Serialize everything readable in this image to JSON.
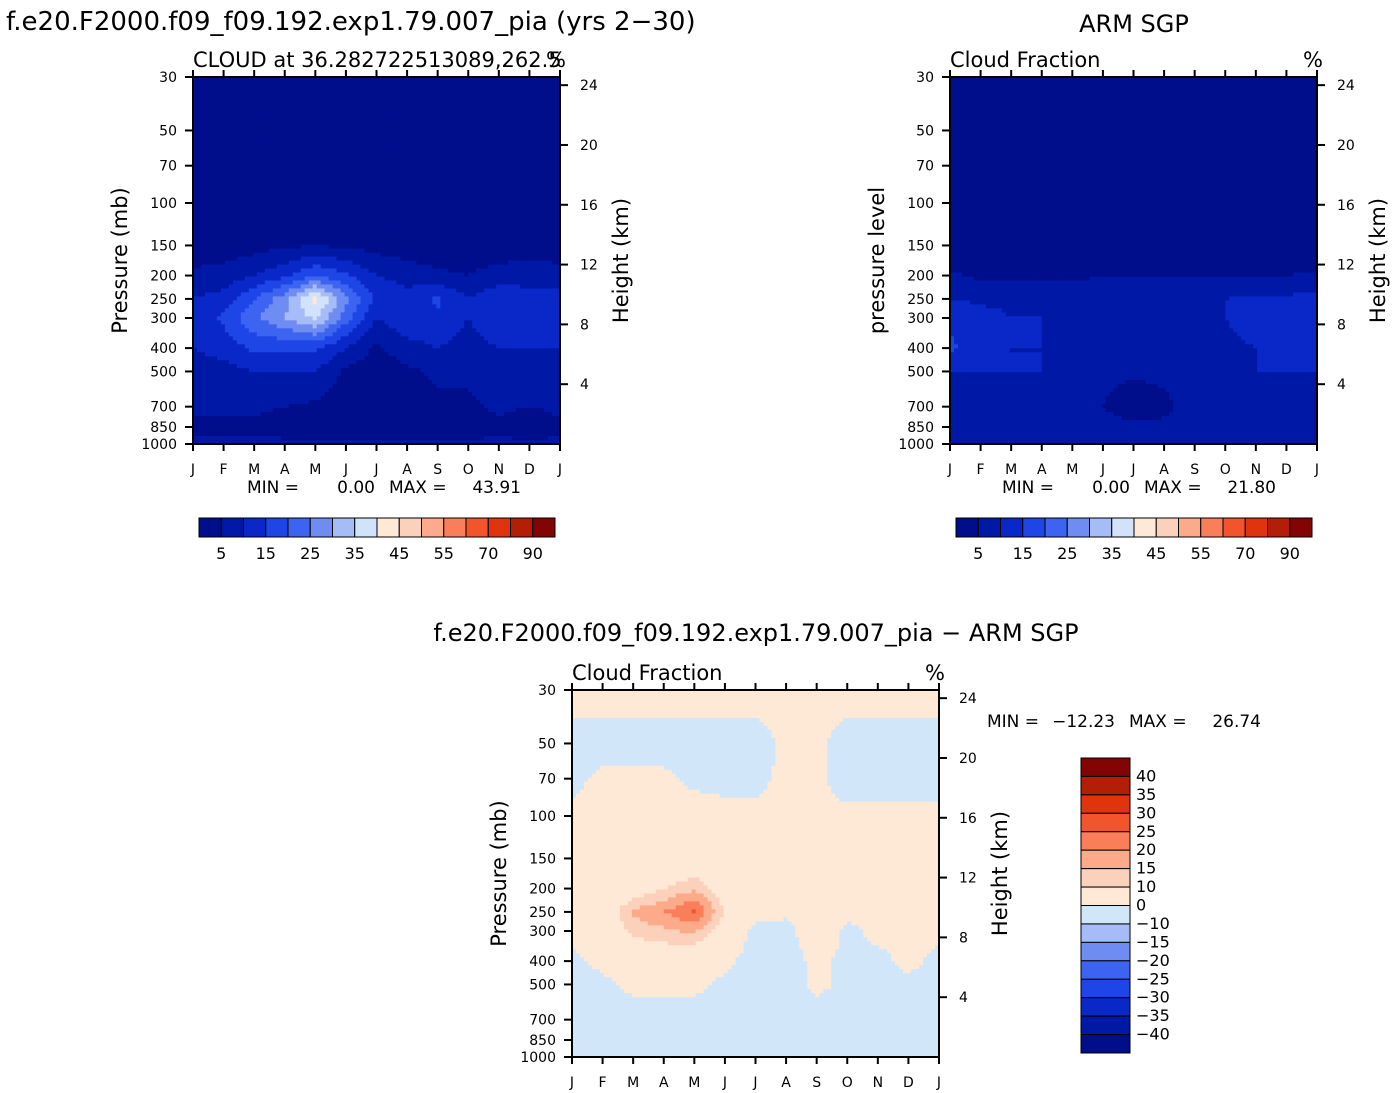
{
  "main_title": "f.e20.F2000.f09_f09.192.exp1.79.007_pia (yrs 2−30)",
  "obs_title": "ARM SGP",
  "diff_title": "f.e20.F2000.f09_f09.192.exp1.79.007_pia − ARM SGP",
  "colors": {
    "levels_abs": [
      "#000e8c",
      "#0018a6",
      "#0a28c8",
      "#1e46e6",
      "#3c64f0",
      "#6e8cf2",
      "#a6bcf6",
      "#d2e2fa",
      "#fde9d6",
      "#fcd1bc",
      "#fcaa8a",
      "#fa7e5a",
      "#f2542c",
      "#e0340e",
      "#b21e06",
      "#820404"
    ],
    "levels_diff": [
      "#000e8c",
      "#0018a6",
      "#0a28c8",
      "#1e46e6",
      "#3c64f0",
      "#6e8cf2",
      "#a6bcf6",
      "#d2e6fa",
      "#fde9d6",
      "#fcd1bc",
      "#fcaa8a",
      "#fa7e5a",
      "#f2542c",
      "#e0340e",
      "#b21e06",
      "#820404"
    ]
  },
  "chart_data": [
    {
      "type": "heatmap",
      "id": "model",
      "panel_title": "CLOUD at 36.282722513089,262.5",
      "units": "%",
      "ylabel": "Pressure (mb)",
      "y2label": "Height (km)",
      "categories": [
        "J",
        "F",
        "M",
        "A",
        "M",
        "J",
        "J",
        "A",
        "S",
        "O",
        "N",
        "D",
        "J"
      ],
      "pressure_ticks": [
        "30",
        "50",
        "70",
        "100",
        "150",
        "200",
        "250",
        "300",
        "400",
        "500",
        "700",
        "850",
        "1000"
      ],
      "height_ticks": [
        "24",
        "20",
        "16",
        "12",
        "8",
        "4"
      ],
      "min_label": "MIN =",
      "min_value": "0.00",
      "max_label": "MAX =",
      "max_value": "43.91",
      "colorbar_labels": [
        "5",
        "15",
        "25",
        "35",
        "45",
        "55",
        "70",
        "90"
      ],
      "levels": [
        0,
        5,
        10,
        15,
        20,
        25,
        30,
        35,
        40,
        45,
        50,
        55,
        60,
        70,
        80,
        90
      ],
      "grid_pressure": [
        30,
        150,
        200,
        250,
        300,
        400,
        500,
        700,
        850,
        1000
      ],
      "z": [
        [
          0,
          0,
          0,
          0,
          0,
          0,
          0,
          0,
          0,
          0,
          0,
          0,
          0
        ],
        [
          2,
          2,
          3,
          4,
          5,
          4,
          3,
          2,
          2,
          2,
          2,
          2,
          2
        ],
        [
          6,
          7,
          10,
          14,
          20,
          16,
          10,
          8,
          6,
          5,
          7,
          8,
          7
        ],
        [
          10,
          12,
          20,
          28,
          42,
          26,
          14,
          12,
          16,
          10,
          14,
          12,
          12
        ],
        [
          12,
          16,
          24,
          30,
          36,
          22,
          10,
          14,
          14,
          10,
          14,
          12,
          14
        ],
        [
          10,
          12,
          16,
          16,
          16,
          10,
          4,
          8,
          10,
          8,
          10,
          10,
          10
        ],
        [
          8,
          8,
          10,
          10,
          10,
          4,
          2,
          4,
          6,
          6,
          8,
          8,
          8
        ],
        [
          6,
          6,
          6,
          5,
          4,
          2,
          1,
          2,
          4,
          4,
          6,
          5,
          6
        ],
        [
          4,
          4,
          4,
          3,
          2,
          1,
          1,
          1,
          2,
          2,
          4,
          2,
          4
        ],
        [
          6,
          6,
          6,
          6,
          6,
          6,
          6,
          6,
          6,
          6,
          6,
          6,
          6
        ]
      ]
    },
    {
      "type": "heatmap",
      "id": "obs",
      "panel_title": "Cloud Fraction",
      "units": "%",
      "ylabel": "pressure level",
      "y2label": "Height (km)",
      "categories": [
        "J",
        "F",
        "M",
        "A",
        "M",
        "J",
        "J",
        "A",
        "S",
        "O",
        "N",
        "D",
        "J"
      ],
      "pressure_ticks": [
        "30",
        "50",
        "70",
        "100",
        "150",
        "200",
        "250",
        "300",
        "400",
        "500",
        "700",
        "850",
        "1000"
      ],
      "height_ticks": [
        "24",
        "20",
        "16",
        "12",
        "8",
        "4"
      ],
      "min_label": "MIN =",
      "min_value": "0.00",
      "max_label": "MAX =",
      "max_value": "21.80",
      "colorbar_labels": [
        "5",
        "15",
        "25",
        "35",
        "45",
        "55",
        "70",
        "90"
      ],
      "levels": [
        0,
        5,
        10,
        15,
        20,
        25,
        30,
        35,
        40,
        45,
        50,
        55,
        60,
        70,
        80,
        90
      ],
      "grid_pressure": [
        30,
        150,
        200,
        250,
        300,
        400,
        500,
        700,
        850,
        1000
      ],
      "z": [
        [
          0,
          0,
          0,
          0,
          0,
          0,
          0,
          0,
          0,
          0,
          0,
          0,
          0
        ],
        [
          0,
          0,
          0,
          1,
          1,
          2,
          2,
          2,
          1,
          1,
          1,
          0,
          0
        ],
        [
          6,
          4,
          4,
          4,
          4,
          5,
          5,
          5,
          5,
          5,
          5,
          5,
          6
        ],
        [
          10,
          9,
          9,
          9,
          8,
          8,
          7,
          8,
          10,
          10,
          11,
          11,
          12
        ],
        [
          14,
          12,
          10,
          10,
          9,
          8,
          6,
          6,
          8,
          10,
          12,
          12,
          14
        ],
        [
          16,
          12,
          10,
          10,
          9,
          7,
          6,
          6,
          8,
          9,
          10,
          12,
          12
        ],
        [
          10,
          10,
          10,
          10,
          9,
          6,
          6,
          6,
          8,
          9,
          10,
          10,
          10
        ],
        [
          8,
          8,
          6,
          6,
          7,
          5,
          2,
          4,
          7,
          6,
          8,
          8,
          8
        ],
        [
          8,
          8,
          10,
          9,
          8,
          7,
          6,
          6,
          7,
          7,
          8,
          10,
          8
        ],
        [
          10,
          10,
          10,
          10,
          10,
          10,
          10,
          10,
          10,
          10,
          10,
          10,
          10
        ]
      ]
    },
    {
      "type": "heatmap",
      "id": "diff",
      "panel_title": "Cloud Fraction",
      "units": "%",
      "ylabel": "Pressure (mb)",
      "y2label": "Height (km)",
      "categories": [
        "J",
        "F",
        "M",
        "A",
        "M",
        "J",
        "J",
        "A",
        "S",
        "O",
        "N",
        "D",
        "J"
      ],
      "pressure_ticks": [
        "30",
        "50",
        "70",
        "100",
        "150",
        "200",
        "250",
        "300",
        "400",
        "500",
        "700",
        "850",
        "1000"
      ],
      "height_ticks": [
        "24",
        "20",
        "16",
        "12",
        "8",
        "4"
      ],
      "min_label": "MIN =",
      "min_value": "−12.23",
      "max_label": "MAX =",
      "max_value": "26.74",
      "colorbar_labels": [
        "40",
        "35",
        "30",
        "25",
        "20",
        "15",
        "10",
        "0",
        "−10",
        "−15",
        "−20",
        "−25",
        "−30",
        "−35",
        "−40"
      ],
      "levels": [
        -1000,
        -40,
        -35,
        -30,
        -25,
        -20,
        -15,
        -10,
        0,
        10,
        15,
        20,
        25,
        30,
        35,
        40
      ],
      "grid_pressure": [
        30,
        50,
        70,
        100,
        150,
        200,
        250,
        300,
        400,
        500,
        700,
        850,
        1000
      ],
      "z": [
        [
          2,
          2,
          2,
          2,
          2,
          2,
          2,
          2,
          2,
          2,
          2,
          2,
          2
        ],
        [
          -2,
          -2,
          -2,
          -2,
          -2,
          -2,
          -2,
          1,
          1,
          -2,
          -2,
          -2,
          -2
        ],
        [
          -1,
          1,
          1,
          1,
          -1,
          -1,
          -1,
          1,
          1,
          -2,
          -2,
          -2,
          -2
        ],
        [
          1,
          1,
          1,
          1,
          2,
          1,
          1,
          1,
          1,
          1,
          1,
          1,
          1
        ],
        [
          1,
          1,
          1,
          2,
          3,
          2,
          1,
          1,
          1,
          1,
          1,
          1,
          1
        ],
        [
          1,
          2,
          5,
          10,
          14,
          6,
          2,
          1,
          2,
          1,
          1,
          1,
          1
        ],
        [
          1,
          4,
          16,
          20,
          26,
          10,
          3,
          1,
          6,
          1,
          2,
          1,
          1
        ],
        [
          1,
          3,
          12,
          14,
          16,
          6,
          -2,
          -2,
          4,
          -1,
          1,
          1,
          1
        ],
        [
          -1,
          1,
          3,
          4,
          3,
          1,
          -2,
          -2,
          1,
          -1,
          -1,
          1,
          -1
        ],
        [
          -1,
          -1,
          1,
          1,
          1,
          -1,
          -2,
          -2,
          1,
          -1,
          -1,
          -1,
          -1
        ],
        [
          -2,
          -2,
          -2,
          -2,
          -2,
          -2,
          -2,
          -2,
          -2,
          -2,
          -2,
          -2,
          -2
        ],
        [
          -2,
          -2,
          -2,
          -2,
          -2,
          -2,
          -2,
          -2,
          -2,
          -2,
          -2,
          -2,
          -2
        ],
        [
          -2,
          -2,
          -2,
          -2,
          -2,
          -2,
          -2,
          -2,
          -2,
          -2,
          -2,
          -2,
          -2
        ]
      ]
    }
  ]
}
